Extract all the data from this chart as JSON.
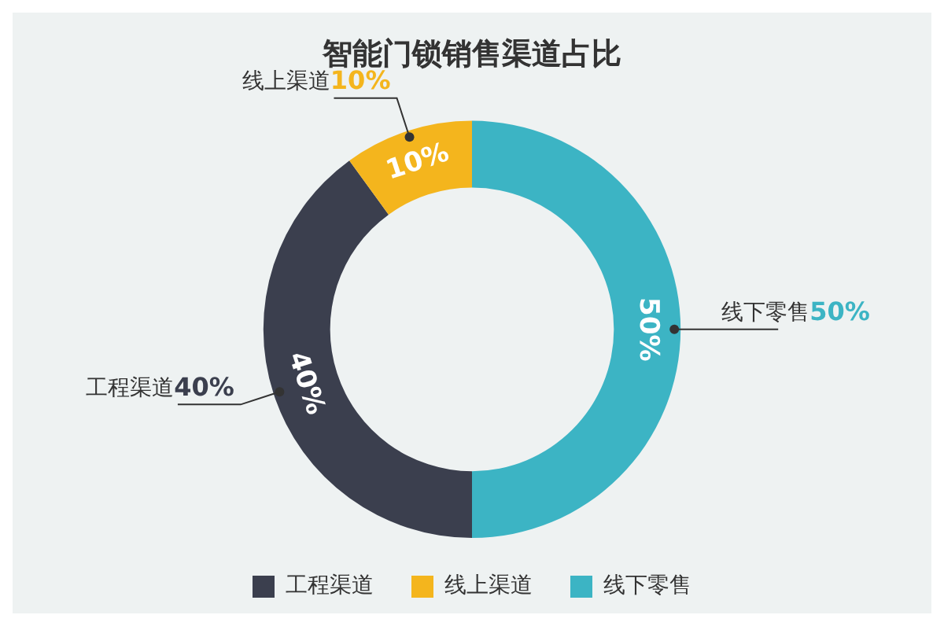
{
  "chart_data": {
    "type": "donut",
    "title": "智能门锁销售渠道占比",
    "categories": [
      "工程渠道",
      "线上渠道",
      "线下零售"
    ],
    "values": [
      40,
      10,
      50
    ],
    "value_labels": [
      "40%",
      "10%",
      "50%"
    ],
    "colors": [
      "#3b3f4e",
      "#f4b51d",
      "#3cb4c4"
    ],
    "legend": "bottom"
  }
}
